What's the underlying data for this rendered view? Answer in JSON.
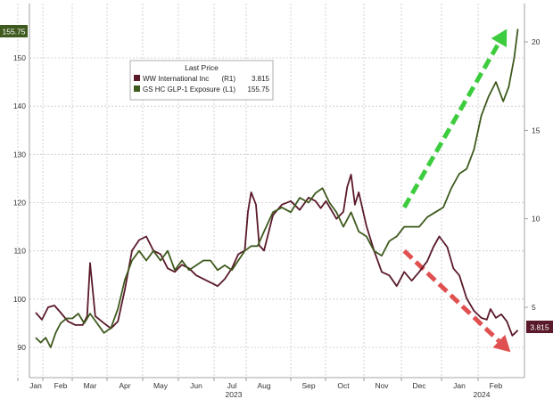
{
  "chart_data": {
    "type": "line",
    "legend": {
      "title": "Last Price",
      "placement": "top-left",
      "items": [
        {
          "name": "WW International Inc",
          "axis": "(R1)",
          "last": "3.815",
          "color": "#5a1a2a"
        },
        {
          "name": "GS HC GLP-1 Exposure",
          "axis": "(L1)",
          "last": "155.75",
          "color": "#3f5a1e"
        }
      ]
    },
    "x_ticks": [
      "Jan",
      "Feb",
      "Mar",
      "Apr",
      "May",
      "Jun",
      "Jul",
      "Aug",
      "Sep",
      "Oct",
      "Nov",
      "Dec",
      "Jan",
      "Feb"
    ],
    "year_labels": [
      "2023",
      "2024"
    ],
    "y_left": {
      "ticks": [
        "90",
        "100",
        "110",
        "120",
        "130",
        "140",
        "150"
      ],
      "range": [
        85,
        160
      ]
    },
    "y_right": {
      "ticks": [
        "5",
        "10",
        "15",
        "20"
      ],
      "range": [
        0.3,
        21.3
      ]
    },
    "last_value_tags": {
      "left": "155.75",
      "right": "3.815"
    },
    "grid": true,
    "series": [
      {
        "name": "WW International Inc",
        "axis": "right",
        "color": "#5a1a2a",
        "points": [
          [
            0,
            4.7
          ],
          [
            0.25,
            4.3
          ],
          [
            0.5,
            5.0
          ],
          [
            0.75,
            5.1
          ],
          [
            1.0,
            4.7
          ],
          [
            1.25,
            4.2
          ],
          [
            1.5,
            4.0
          ],
          [
            1.75,
            4.0
          ],
          [
            1.9,
            4.5
          ],
          [
            2.0,
            7.5
          ],
          [
            2.15,
            4.5
          ],
          [
            2.4,
            4.1
          ],
          [
            2.6,
            3.8
          ],
          [
            2.8,
            4.2
          ],
          [
            3.0,
            6.0
          ],
          [
            3.2,
            8.2
          ],
          [
            3.4,
            8.8
          ],
          [
            3.6,
            9.0
          ],
          [
            3.8,
            8.2
          ],
          [
            4.0,
            8.0
          ],
          [
            4.2,
            7.2
          ],
          [
            4.4,
            7.0
          ],
          [
            4.6,
            7.4
          ],
          [
            4.8,
            7.2
          ],
          [
            5.0,
            6.8
          ],
          [
            5.2,
            6.6
          ],
          [
            5.4,
            6.4
          ],
          [
            5.6,
            6.2
          ],
          [
            5.8,
            6.6
          ],
          [
            6.0,
            7.2
          ],
          [
            6.2,
            8.0
          ],
          [
            6.4,
            8.2
          ],
          [
            6.5,
            10.4
          ],
          [
            6.6,
            11.5
          ],
          [
            6.75,
            10.8
          ],
          [
            6.85,
            8.5
          ],
          [
            7.0,
            8.2
          ],
          [
            7.2,
            10.2
          ],
          [
            7.4,
            10.8
          ],
          [
            7.6,
            11.0
          ],
          [
            7.8,
            10.5
          ],
          [
            8.0,
            11.2
          ],
          [
            8.2,
            11.0
          ],
          [
            8.35,
            10.6
          ],
          [
            8.5,
            11.0
          ],
          [
            8.65,
            10.5
          ],
          [
            8.8,
            10.0
          ],
          [
            9.0,
            10.4
          ],
          [
            9.1,
            11.8
          ],
          [
            9.2,
            12.5
          ],
          [
            9.3,
            10.8
          ],
          [
            9.4,
            11.5
          ],
          [
            9.6,
            9.6
          ],
          [
            9.8,
            8.2
          ],
          [
            10.0,
            7.0
          ],
          [
            10.2,
            6.8
          ],
          [
            10.4,
            6.2
          ],
          [
            10.6,
            7.0
          ],
          [
            10.8,
            6.5
          ],
          [
            11.0,
            7.0
          ],
          [
            11.2,
            7.6
          ],
          [
            11.35,
            8.4
          ],
          [
            11.5,
            9.0
          ],
          [
            11.7,
            8.4
          ],
          [
            11.85,
            7.2
          ],
          [
            12.0,
            6.8
          ],
          [
            12.2,
            5.5
          ],
          [
            12.4,
            4.8
          ],
          [
            12.6,
            4.4
          ],
          [
            12.75,
            4.3
          ],
          [
            12.85,
            4.9
          ],
          [
            13.0,
            4.4
          ],
          [
            13.15,
            4.6
          ],
          [
            13.3,
            4.2
          ],
          [
            13.45,
            3.4
          ],
          [
            13.6,
            3.7
          ]
        ]
      },
      {
        "name": "GS HC GLP-1 Exposure",
        "axis": "left",
        "color": "#3f5a1e",
        "points": [
          [
            0,
            92
          ],
          [
            0.2,
            91
          ],
          [
            0.4,
            92
          ],
          [
            0.6,
            90
          ],
          [
            0.8,
            93
          ],
          [
            1.0,
            95
          ],
          [
            1.2,
            96
          ],
          [
            1.4,
            96
          ],
          [
            1.6,
            97
          ],
          [
            1.8,
            95
          ],
          [
            2.0,
            97
          ],
          [
            2.2,
            95
          ],
          [
            2.4,
            93
          ],
          [
            2.6,
            94
          ],
          [
            2.8,
            98
          ],
          [
            3.0,
            104
          ],
          [
            3.2,
            108
          ],
          [
            3.4,
            110
          ],
          [
            3.6,
            108
          ],
          [
            3.8,
            110
          ],
          [
            4.0,
            108
          ],
          [
            4.2,
            110
          ],
          [
            4.4,
            106
          ],
          [
            4.6,
            108
          ],
          [
            4.8,
            106
          ],
          [
            5.0,
            107
          ],
          [
            5.2,
            108
          ],
          [
            5.4,
            108
          ],
          [
            5.6,
            106
          ],
          [
            5.8,
            107
          ],
          [
            6.0,
            106
          ],
          [
            6.2,
            108
          ],
          [
            6.4,
            110
          ],
          [
            6.6,
            111
          ],
          [
            6.8,
            111
          ],
          [
            7.0,
            114
          ],
          [
            7.2,
            118
          ],
          [
            7.4,
            119
          ],
          [
            7.6,
            118
          ],
          [
            7.8,
            121
          ],
          [
            8.0,
            120
          ],
          [
            8.2,
            122
          ],
          [
            8.4,
            123
          ],
          [
            8.6,
            120
          ],
          [
            8.8,
            118
          ],
          [
            9.0,
            115
          ],
          [
            9.2,
            118
          ],
          [
            9.4,
            114
          ],
          [
            9.6,
            113
          ],
          [
            9.8,
            110
          ],
          [
            10.0,
            109
          ],
          [
            10.2,
            112
          ],
          [
            10.4,
            113
          ],
          [
            10.6,
            115
          ],
          [
            10.8,
            115
          ],
          [
            11.0,
            115
          ],
          [
            11.2,
            117
          ],
          [
            11.4,
            118
          ],
          [
            11.6,
            119
          ],
          [
            11.8,
            123
          ],
          [
            12.0,
            126
          ],
          [
            12.2,
            127
          ],
          [
            12.4,
            131
          ],
          [
            12.6,
            138
          ],
          [
            12.8,
            142
          ],
          [
            13.0,
            145
          ],
          [
            13.2,
            141
          ],
          [
            13.35,
            144
          ],
          [
            13.5,
            150
          ],
          [
            13.6,
            156
          ]
        ]
      }
    ],
    "annotations": [
      {
        "kind": "arrow",
        "color": "#3dcc3d",
        "direction": "up",
        "from": [
          10.6,
          119
        ],
        "to": [
          13.3,
          156
        ]
      },
      {
        "kind": "arrow",
        "color": "#e05050",
        "direction": "down",
        "from": [
          10.6,
          110
        ],
        "to": [
          13.4,
          89
        ]
      }
    ]
  }
}
